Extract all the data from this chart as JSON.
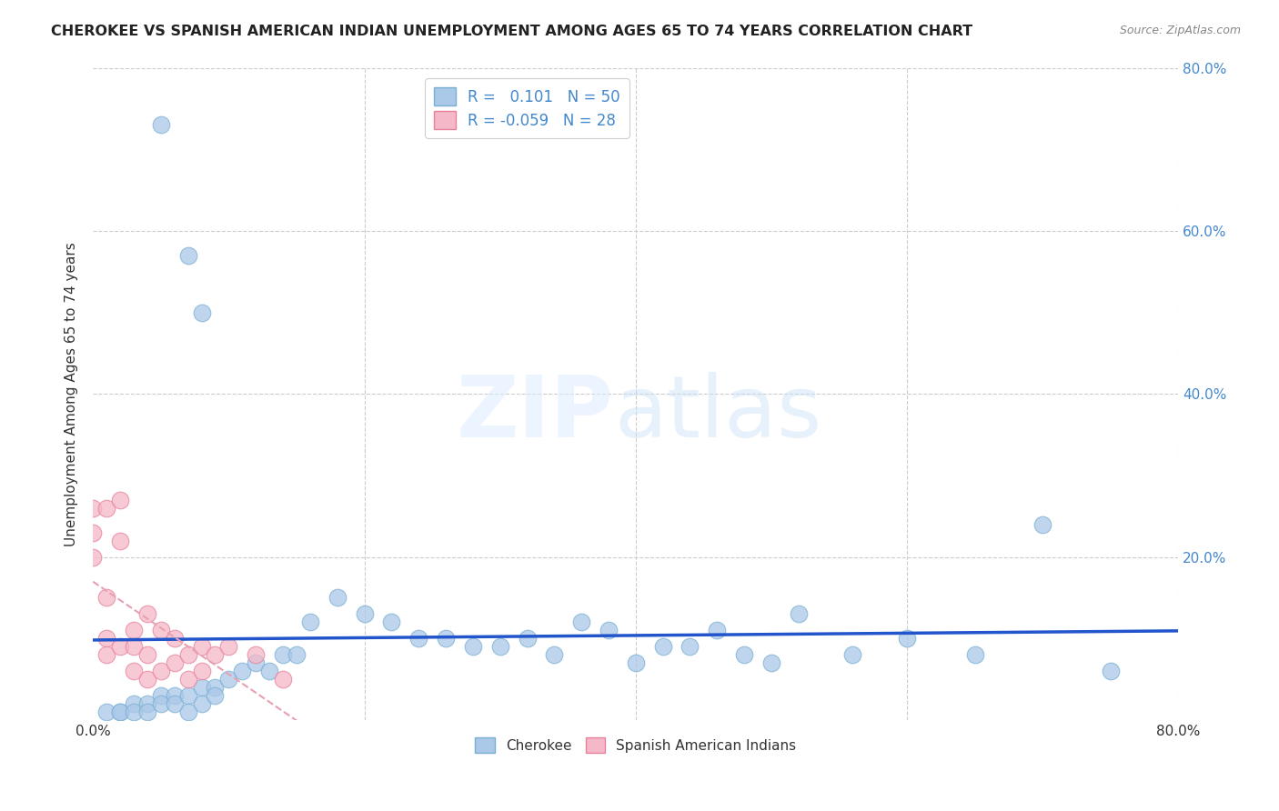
{
  "title": "CHEROKEE VS SPANISH AMERICAN INDIAN UNEMPLOYMENT AMONG AGES 65 TO 74 YEARS CORRELATION CHART",
  "source": "Source: ZipAtlas.com",
  "ylabel": "Unemployment Among Ages 65 to 74 years",
  "xlim": [
    0,
    0.8
  ],
  "ylim": [
    0,
    0.8
  ],
  "grid_color": "#cccccc",
  "background_color": "#ffffff",
  "cherokee_color": "#aac8e8",
  "cherokee_edge_color": "#7aafd4",
  "spanish_color": "#f4b8c8",
  "spanish_edge_color": "#e8809a",
  "trend_blue_color": "#2255cc",
  "trend_pink_color": "#e8a0b0",
  "R_cherokee": 0.101,
  "N_cherokee": 50,
  "R_spanish": -0.059,
  "N_spanish": 28,
  "cherokee_x": [
    0.05,
    0.07,
    0.08,
    0.01,
    0.02,
    0.02,
    0.03,
    0.03,
    0.04,
    0.04,
    0.05,
    0.05,
    0.06,
    0.06,
    0.07,
    0.07,
    0.08,
    0.08,
    0.09,
    0.09,
    0.1,
    0.11,
    0.12,
    0.13,
    0.14,
    0.15,
    0.16,
    0.18,
    0.2,
    0.22,
    0.24,
    0.26,
    0.28,
    0.3,
    0.32,
    0.34,
    0.36,
    0.38,
    0.4,
    0.42,
    0.44,
    0.46,
    0.48,
    0.5,
    0.52,
    0.56,
    0.6,
    0.65,
    0.7,
    0.75
  ],
  "cherokee_y": [
    0.73,
    0.57,
    0.5,
    0.01,
    0.01,
    0.01,
    0.02,
    0.01,
    0.02,
    0.01,
    0.03,
    0.02,
    0.03,
    0.02,
    0.03,
    0.01,
    0.04,
    0.02,
    0.04,
    0.03,
    0.05,
    0.06,
    0.07,
    0.06,
    0.08,
    0.08,
    0.12,
    0.15,
    0.13,
    0.12,
    0.1,
    0.1,
    0.09,
    0.09,
    0.1,
    0.08,
    0.12,
    0.11,
    0.07,
    0.09,
    0.09,
    0.11,
    0.08,
    0.07,
    0.13,
    0.08,
    0.1,
    0.08,
    0.24,
    0.06
  ],
  "spanish_x": [
    0.0,
    0.0,
    0.0,
    0.01,
    0.01,
    0.01,
    0.01,
    0.02,
    0.02,
    0.02,
    0.03,
    0.03,
    0.03,
    0.04,
    0.04,
    0.04,
    0.05,
    0.05,
    0.06,
    0.06,
    0.07,
    0.07,
    0.08,
    0.08,
    0.09,
    0.1,
    0.12,
    0.14
  ],
  "spanish_y": [
    0.26,
    0.23,
    0.2,
    0.26,
    0.15,
    0.1,
    0.08,
    0.27,
    0.22,
    0.09,
    0.11,
    0.09,
    0.06,
    0.13,
    0.08,
    0.05,
    0.11,
    0.06,
    0.1,
    0.07,
    0.08,
    0.05,
    0.09,
    0.06,
    0.08,
    0.09,
    0.08,
    0.05
  ]
}
